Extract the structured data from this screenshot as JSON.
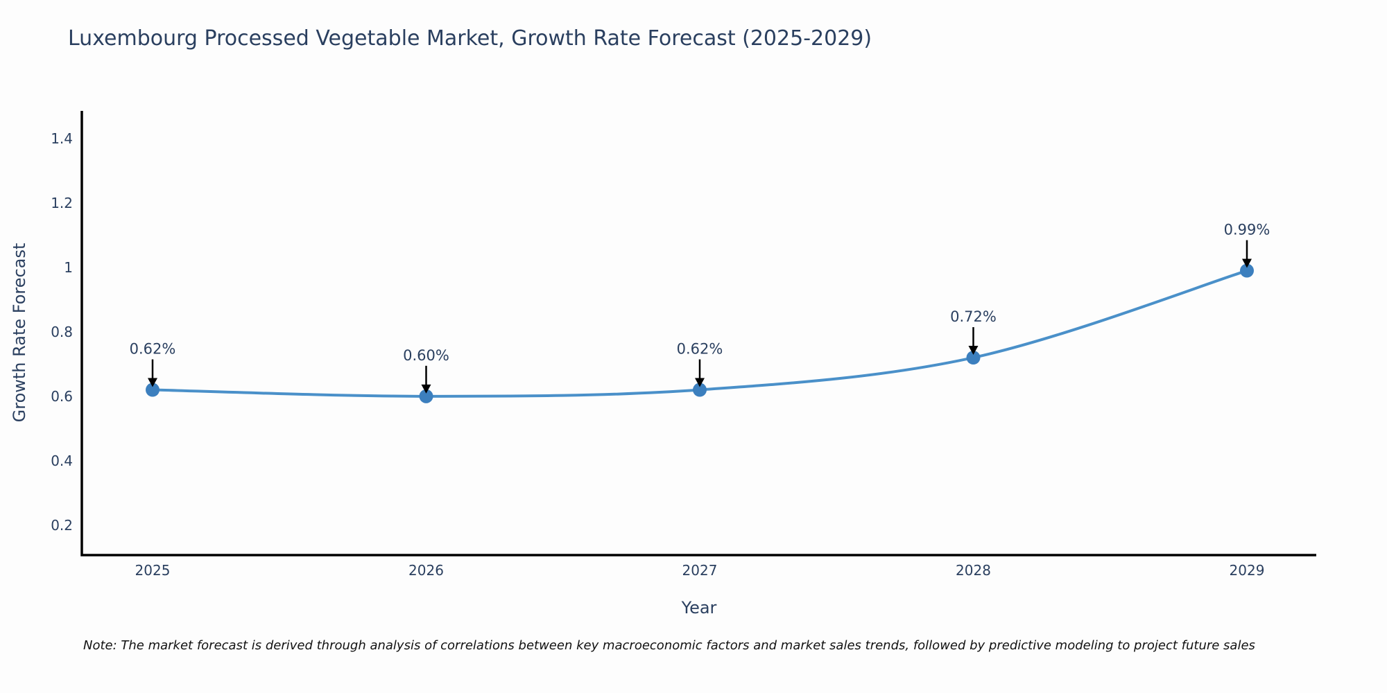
{
  "header": {
    "title": "Luxembourg Processed Vegetable Market, Growth Rate Forecast (2025-2029)"
  },
  "footnote": {
    "text": "Note: The market forecast is derived through analysis of correlations between key macroeconomic factors and market sales trends, followed by predictive modeling to project future sales"
  },
  "chart_data": {
    "type": "line",
    "title": "Luxembourg Processed Vegetable Market, Growth Rate Forecast (2025-2029)",
    "xlabel": "Year",
    "ylabel": "Growth Rate Forecast",
    "categories": [
      "2025",
      "2026",
      "2027",
      "2028",
      "2029"
    ],
    "series": [
      {
        "name": "Growth Rate Forecast",
        "values": [
          0.62,
          0.6,
          0.62,
          0.72,
          0.99
        ]
      }
    ],
    "point_labels": [
      "0.62%",
      "0.60%",
      "0.62%",
      "0.72%",
      "0.99%"
    ],
    "annotation_arrows": true,
    "line_shape": "spline",
    "grid": false,
    "legend": "none",
    "ylim": [
      0.107,
      1.486
    ],
    "yticks": [
      "0.2",
      "0.4",
      "0.6",
      "0.8",
      "1",
      "1.2",
      "1.4"
    ],
    "colors": {
      "line": "#4a90c9",
      "marker": "#3c7fbe",
      "arrow": "#000000",
      "axis": "#000000",
      "tick_text": "#2a3f5f",
      "annotation_text": "#2a3f5f"
    }
  }
}
